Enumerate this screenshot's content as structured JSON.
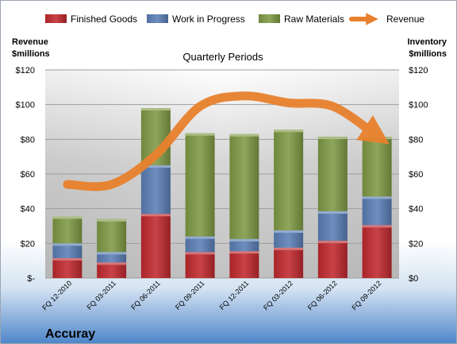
{
  "chart_data": {
    "type": "bar",
    "stacked": true,
    "subtitle": "Quarterly Periods",
    "company": "Accuray",
    "categories": [
      "FQ 12-2010",
      "FQ 03-2011",
      "FQ 06-2011",
      "FQ 09-2011",
      "FQ 12-2011",
      "FQ 03-2012",
      "FQ 06-2012",
      "FQ 09-2012"
    ],
    "series": [
      {
        "name": "Finished Goods",
        "color": "#c0292e",
        "values": [
          11.5,
          9,
          37,
          15,
          15.5,
          17.5,
          21.5,
          30.5
        ]
      },
      {
        "name": "Work in Progress",
        "color": "#5b7fb6",
        "values": [
          8.5,
          6,
          28,
          9,
          7,
          10,
          17,
          16.5
        ]
      },
      {
        "name": "Raw Materials",
        "color": "#7f9a45",
        "values": [
          15.5,
          19,
          33,
          59.5,
          60.5,
          58,
          43,
          34.5
        ]
      }
    ],
    "line_series": {
      "name": "Revenue",
      "color": "#e8812d",
      "values": [
        54,
        54,
        71,
        99,
        105,
        101,
        99,
        82
      ]
    },
    "left_axis": {
      "title_line1": "Revenue",
      "title_line2": "$millions",
      "ylim": [
        0,
        120
      ],
      "ticks": [
        "$-",
        "$20",
        "$40",
        "$60",
        "$80",
        "$100",
        "$120"
      ]
    },
    "right_axis": {
      "title_line1": "Inventory",
      "title_line2": "$millions",
      "ylim": [
        0,
        120
      ],
      "ticks": [
        "$0",
        "$20",
        "$40",
        "$60",
        "$80",
        "$100",
        "$120"
      ]
    },
    "grid": true,
    "legend_position": "top"
  }
}
